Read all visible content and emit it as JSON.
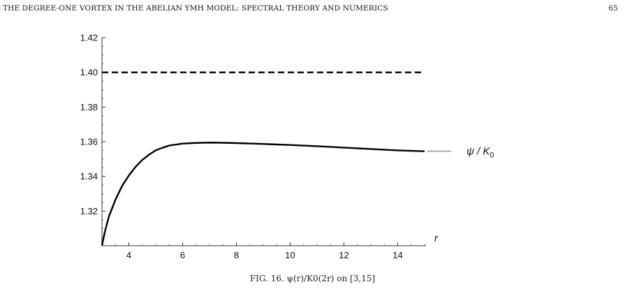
{
  "header": {
    "title": "THE DEGREE-ONE VORTEX IN THE ABELIAN YMH MODEL: SPECTRAL THEORY AND NUMERICS",
    "page_number": "65"
  },
  "chart_data": {
    "type": "line",
    "xlabel": "r",
    "ylabel": "",
    "xlim": [
      3,
      15
    ],
    "ylim": [
      1.3,
      1.42
    ],
    "x_ticks": [
      "4",
      "6",
      "8",
      "10",
      "12",
      "14"
    ],
    "y_ticks": [
      "1.32",
      "1.34",
      "1.36",
      "1.38",
      "1.40",
      "1.42"
    ],
    "grid": false,
    "series": [
      {
        "name": "",
        "style": "dashed",
        "color": "#000000",
        "x": [
          3,
          15
        ],
        "y": [
          1.4,
          1.4
        ]
      },
      {
        "name": "ψ / K0",
        "style": "solid",
        "color": "#000000",
        "x": [
          3.0,
          3.1,
          3.25,
          3.5,
          3.75,
          4.0,
          4.25,
          4.5,
          4.75,
          5.0,
          5.25,
          5.5,
          6.0,
          6.5,
          7.0,
          7.5,
          8.0,
          9.0,
          10.0,
          11.0,
          12.0,
          13.0,
          14.0,
          15.0
        ],
        "y": [
          1.3,
          1.3075,
          1.3165,
          1.3265,
          1.3345,
          1.3405,
          1.3455,
          1.3495,
          1.3525,
          1.355,
          1.3565,
          1.3578,
          1.3589,
          1.3593,
          1.3595,
          1.3594,
          1.3592,
          1.3587,
          1.3581,
          1.3574,
          1.3566,
          1.3558,
          1.355,
          1.3545
        ]
      }
    ],
    "legend": {
      "label_prefix": "ψ / K",
      "label_subscript": "0",
      "placement": "right",
      "swatch_color": "#aaaaaa"
    }
  },
  "caption": "FIG. 16. ψ(r)/K0(2r) on [3,15]"
}
